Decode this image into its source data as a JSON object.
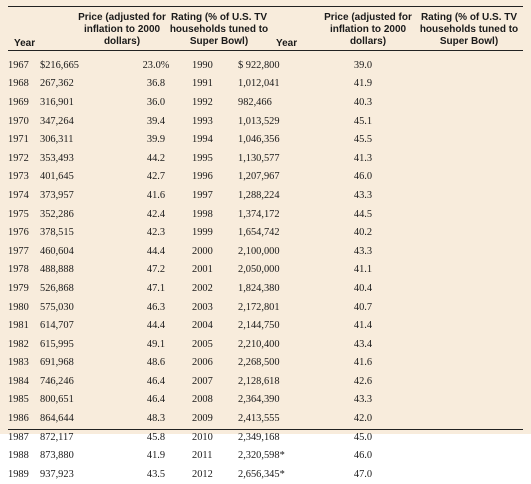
{
  "headers": {
    "year_left": "Year",
    "price_left": [
      "Price (adjusted for",
      "inflation to 2000",
      "dollars)"
    ],
    "rating_left": [
      "Rating (% of U.S. TV",
      "households tuned to",
      "Super Bowl)"
    ],
    "year_right": "Year",
    "price_right": [
      "Price (adjusted for",
      "inflation to 2000",
      "dollars)"
    ],
    "rating_right": [
      "Rating (% of U.S. TV",
      "households tuned to",
      "Super Bowl)"
    ]
  },
  "rows": [
    {
      "y1": "1967",
      "p1": "$216,665",
      "r1": "23.0%",
      "y2": "1990",
      "p2": "$ 922,800",
      "r2": "39.0"
    },
    {
      "y1": "1968",
      "p1": "267,362",
      "r1": "36.8",
      "y2": "1991",
      "p2": "1,012,041",
      "r2": "41.9"
    },
    {
      "y1": "1969",
      "p1": "316,901",
      "r1": "36.0",
      "y2": "1992",
      "p2": "982,466",
      "r2": "40.3"
    },
    {
      "y1": "1970",
      "p1": "347,264",
      "r1": "39.4",
      "y2": "1993",
      "p2": "1,013,529",
      "r2": "45.1"
    },
    {
      "y1": "1971",
      "p1": "306,311",
      "r1": "39.9",
      "y2": "1994",
      "p2": "1,046,356",
      "r2": "45.5"
    },
    {
      "y1": "1972",
      "p1": "353,493",
      "r1": "44.2",
      "y2": "1995",
      "p2": "1,130,577",
      "r2": "41.3"
    },
    {
      "y1": "1973",
      "p1": "401,645",
      "r1": "42.7",
      "y2": "1996",
      "p2": "1,207,967",
      "r2": "46.0"
    },
    {
      "y1": "1974",
      "p1": "373,957",
      "r1": "41.6",
      "y2": "1997",
      "p2": "1,288,224",
      "r2": "43.3"
    },
    {
      "y1": "1975",
      "p1": "352,286",
      "r1": "42.4",
      "y2": "1998",
      "p2": "1,374,172",
      "r2": "44.5"
    },
    {
      "y1": "1976",
      "p1": "378,515",
      "r1": "42.3",
      "y2": "1999",
      "p2": "1,654,742",
      "r2": "40.2"
    },
    {
      "y1": "1977",
      "p1": "460,604",
      "r1": "44.4",
      "y2": "2000",
      "p2": "2,100,000",
      "r2": "43.3"
    },
    {
      "y1": "1978",
      "p1": "488,888",
      "r1": "47.2",
      "y2": "2001",
      "p2": "2,050,000",
      "r2": "41.1"
    },
    {
      "y1": "1979",
      "p1": "526,868",
      "r1": "47.1",
      "y2": "2002",
      "p2": "1,824,380",
      "r2": "40.4"
    },
    {
      "y1": "1980",
      "p1": "575,030",
      "r1": "46.3",
      "y2": "2003",
      "p2": "2,172,801",
      "r2": "40.7"
    },
    {
      "y1": "1981",
      "p1": "614,707",
      "r1": "44.4",
      "y2": "2004",
      "p2": "2,144,750",
      "r2": "41.4"
    },
    {
      "y1": "1982",
      "p1": "615,995",
      "r1": "49.1",
      "y2": "2005",
      "p2": "2,210,400",
      "r2": "43.4"
    },
    {
      "y1": "1983",
      "p1": "691,968",
      "r1": "48.6",
      "y2": "2006",
      "p2": "2,268,500",
      "r2": "41.6"
    },
    {
      "y1": "1984",
      "p1": "746,246",
      "r1": "46.4",
      "y2": "2007",
      "p2": "2,128,618",
      "r2": "42.6"
    },
    {
      "y1": "1985",
      "p1": "800,651",
      "r1": "46.4",
      "y2": "2008",
      "p2": "2,364,390",
      "r2": "43.3"
    },
    {
      "y1": "1986",
      "p1": "864,644",
      "r1": "48.3",
      "y2": "2009",
      "p2": "2,413,555",
      "r2": "42.0"
    },
    {
      "y1": "1987",
      "p1": "872,117",
      "r1": "45.8",
      "y2": "2010",
      "p2": "2,349,168",
      "r2": "45.0"
    },
    {
      "y1": "1988",
      "p1": "873,880",
      "r1": "41.9",
      "y2": "2011",
      "p2": "2,320,598*",
      "r2": "46.0"
    },
    {
      "y1": "1989",
      "p1": "937,923",
      "r1": "43.5",
      "y2": "2012",
      "p2": "2,656,345*",
      "r2": "47.0"
    }
  ]
}
